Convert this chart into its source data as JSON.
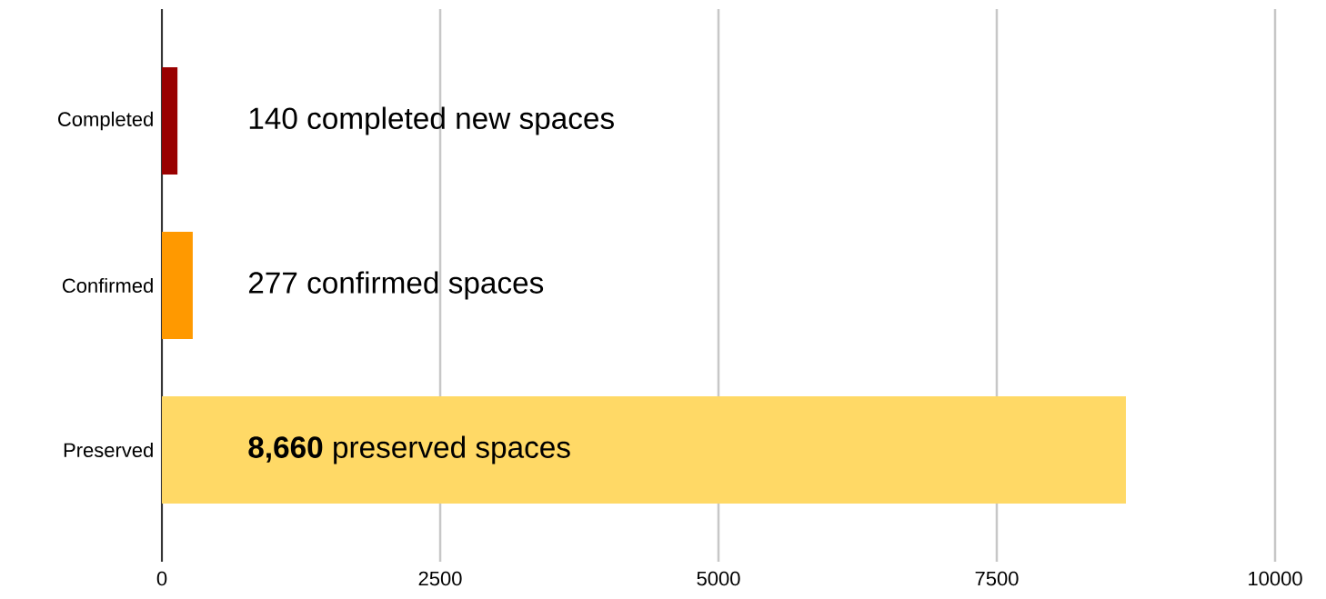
{
  "chart_data": {
    "type": "bar",
    "orientation": "horizontal",
    "categories": [
      "Completed",
      "Confirmed",
      "Preserved"
    ],
    "values": [
      140,
      277,
      8660
    ],
    "colors": [
      "#990000",
      "#ff9900",
      "#ffd966"
    ],
    "value_labels": [
      "140 completed new spaces",
      "277 confirmed spaces",
      "**8,660** preserved spaces"
    ],
    "xlim": [
      0,
      10000
    ],
    "xticks": [
      0,
      2500,
      5000,
      7500,
      10000
    ],
    "grid": "x"
  }
}
